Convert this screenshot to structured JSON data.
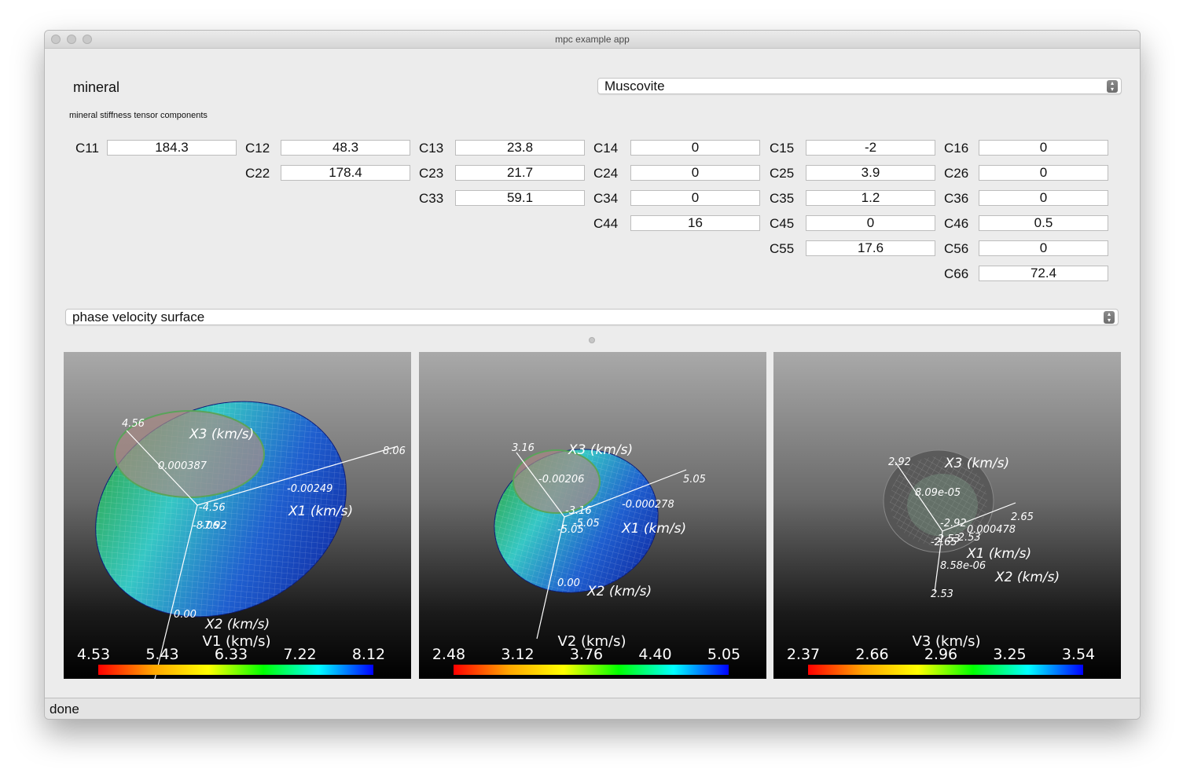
{
  "window": {
    "title": "mpc example app"
  },
  "mineral": {
    "label": "mineral",
    "selected": "Muscovite"
  },
  "tensor": {
    "caption": "mineral stiffness tensor components",
    "components": [
      {
        "label": "C11",
        "value": "184.3"
      },
      {
        "label": "C12",
        "value": "48.3"
      },
      {
        "label": "C13",
        "value": "23.8"
      },
      {
        "label": "C14",
        "value": "0"
      },
      {
        "label": "C15",
        "value": "-2"
      },
      {
        "label": "C16",
        "value": "0"
      },
      {
        "label": "C22",
        "value": "178.4"
      },
      {
        "label": "C23",
        "value": "21.7"
      },
      {
        "label": "C24",
        "value": "0"
      },
      {
        "label": "C25",
        "value": "3.9"
      },
      {
        "label": "C26",
        "value": "0"
      },
      {
        "label": "C33",
        "value": "59.1"
      },
      {
        "label": "C34",
        "value": "0"
      },
      {
        "label": "C35",
        "value": "1.2"
      },
      {
        "label": "C36",
        "value": "0"
      },
      {
        "label": "C44",
        "value": "16"
      },
      {
        "label": "C45",
        "value": "0"
      },
      {
        "label": "C46",
        "value": "0.5"
      },
      {
        "label": "C55",
        "value": "17.6"
      },
      {
        "label": "C56",
        "value": "0"
      },
      {
        "label": "C66",
        "value": "72.4"
      }
    ]
  },
  "plot_mode": {
    "selected": "phase velocity surface"
  },
  "viewports": [
    {
      "colorbar_title": "V1 (km/s)",
      "ticks": [
        "4.53",
        "5.43",
        "6.33",
        "7.22",
        "8.12"
      ],
      "axis_titles": {
        "x1": "X1 (km/s)",
        "x2": "X2 (km/s)",
        "x3": "X3 (km/s)"
      },
      "axis_labels": [
        "4.56",
        "0.000387",
        "-4.56",
        "-8.06",
        "0.00",
        "8.06",
        "-0.00249",
        "-7.92"
      ]
    },
    {
      "colorbar_title": "V2 (km/s)",
      "ticks": [
        "2.48",
        "3.12",
        "3.76",
        "4.40",
        "5.05"
      ],
      "axis_titles": {
        "x1": "X1 (km/s)",
        "x2": "X2 (km/s)",
        "x3": "X3 (km/s)"
      },
      "axis_labels": [
        "3.16",
        "-0.00206",
        "-3.16",
        "-5.05",
        "0.00",
        "5.05",
        "-0.000278",
        "-5.05"
      ]
    },
    {
      "colorbar_title": "V3 (km/s)",
      "ticks": [
        "2.37",
        "2.66",
        "2.96",
        "3.25",
        "3.54"
      ],
      "axis_titles": {
        "x1": "X1 (km/s)",
        "x2": "X2 (km/s)",
        "x3": "X3 (km/s)"
      },
      "axis_labels": [
        "2.92",
        "8.09e-05",
        "-2.92",
        "-2.65",
        "8.58e-06",
        "2.65",
        "0.000478",
        "-2.53",
        "2.53",
        "-2.53"
      ]
    }
  ],
  "colors": {
    "colormap": [
      "#ff0000",
      "#ffa500",
      "#ffff00",
      "#00ff00",
      "#00ffff",
      "#0000ff"
    ]
  },
  "status": {
    "text": "done"
  }
}
